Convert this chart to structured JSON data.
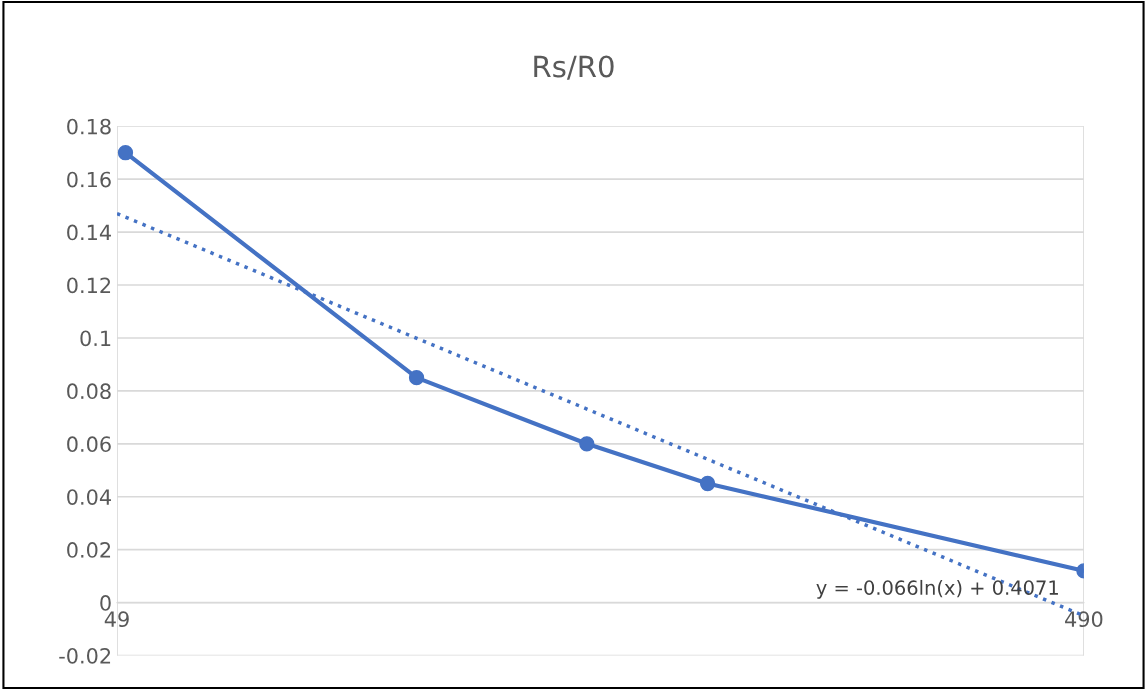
{
  "chart_data": {
    "type": "line",
    "title": "Rs/R0",
    "x": [
      50,
      100,
      150,
      200,
      490
    ],
    "series": [
      {
        "color": "#4472c4",
        "marker": "circle",
        "line_style": "solid",
        "values": [
          0.17,
          0.085,
          0.06,
          0.045,
          0.012
        ]
      },
      {
        "color": "#4472c4",
        "marker": "none",
        "line_style": "dotted",
        "x": [
          49,
          490
        ],
        "values": [
          0.147,
          -0.005
        ]
      }
    ],
    "log": "x",
    "xlim": [
      49,
      490
    ],
    "xticks": [
      49,
      490
    ],
    "ylim": [
      -0.02,
      0.18
    ],
    "yticks": [
      -0.02,
      0,
      0.02,
      0.04,
      0.06,
      0.08,
      0.1,
      0.12,
      0.14,
      0.16,
      0.18
    ],
    "grid": true,
    "legend": false,
    "annotations": [
      "y = -0.066ln(x) + 0.4071"
    ]
  }
}
